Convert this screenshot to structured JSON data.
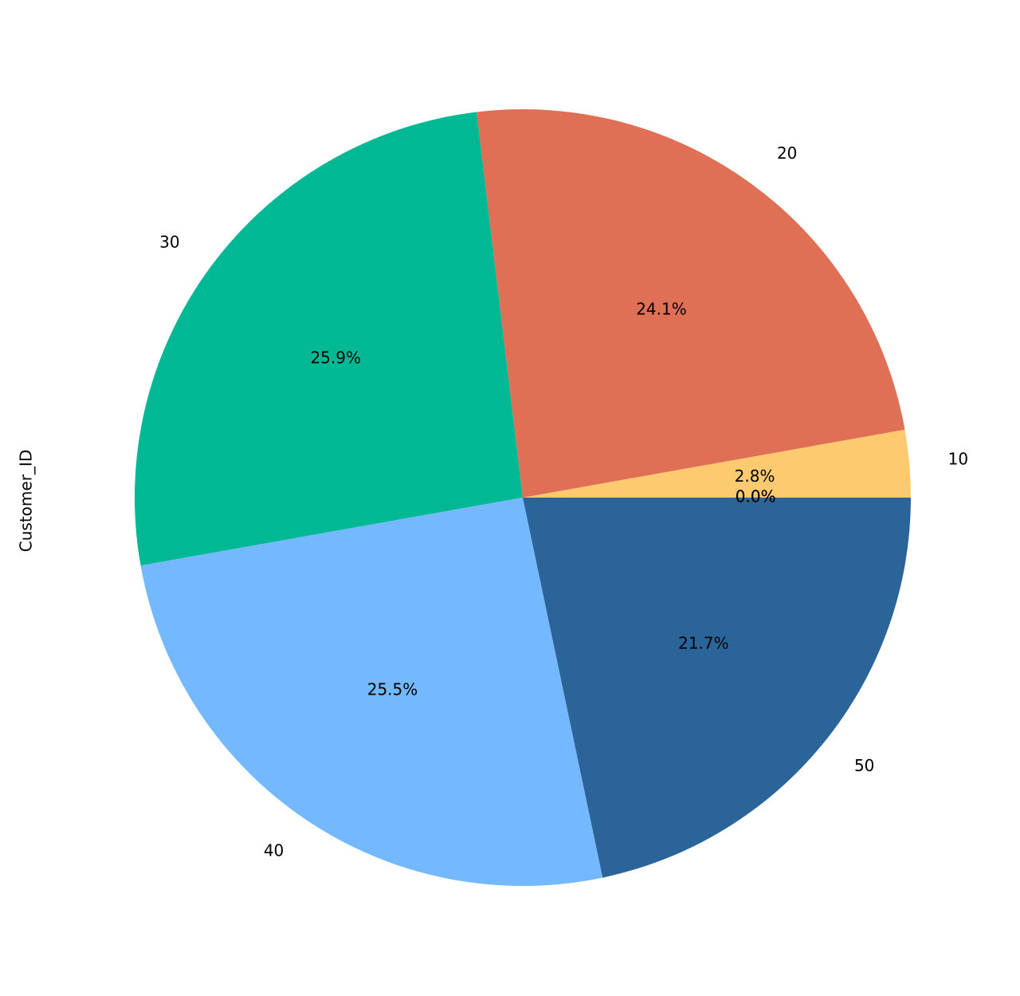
{
  "chart_data": {
    "type": "pie",
    "ylabel": "Customer_ID",
    "start_angle_deg": 0,
    "direction": "counterclockwise",
    "slices": [
      {
        "label": "10",
        "percent": 2.8,
        "percent_label": "2.8%",
        "color": "#fdca70"
      },
      {
        "label": "20",
        "percent": 24.1,
        "percent_label": "24.1%",
        "color": "#e07055"
      },
      {
        "label": "30",
        "percent": 25.9,
        "percent_label": "25.9%",
        "color": "#00b894"
      },
      {
        "label": "40",
        "percent": 25.5,
        "percent_label": "25.5%",
        "color": "#74b8ff"
      },
      {
        "label": "50",
        "percent": 21.7,
        "percent_label": "21.7%",
        "color": "#2b6499"
      },
      {
        "label": "",
        "percent": 0.0,
        "percent_label": "0.0%",
        "color": "#2b6499"
      },
      {
        "label": "",
        "percent": 0.0,
        "percent_label": "0.0%",
        "color": "#2b6499"
      }
    ]
  }
}
